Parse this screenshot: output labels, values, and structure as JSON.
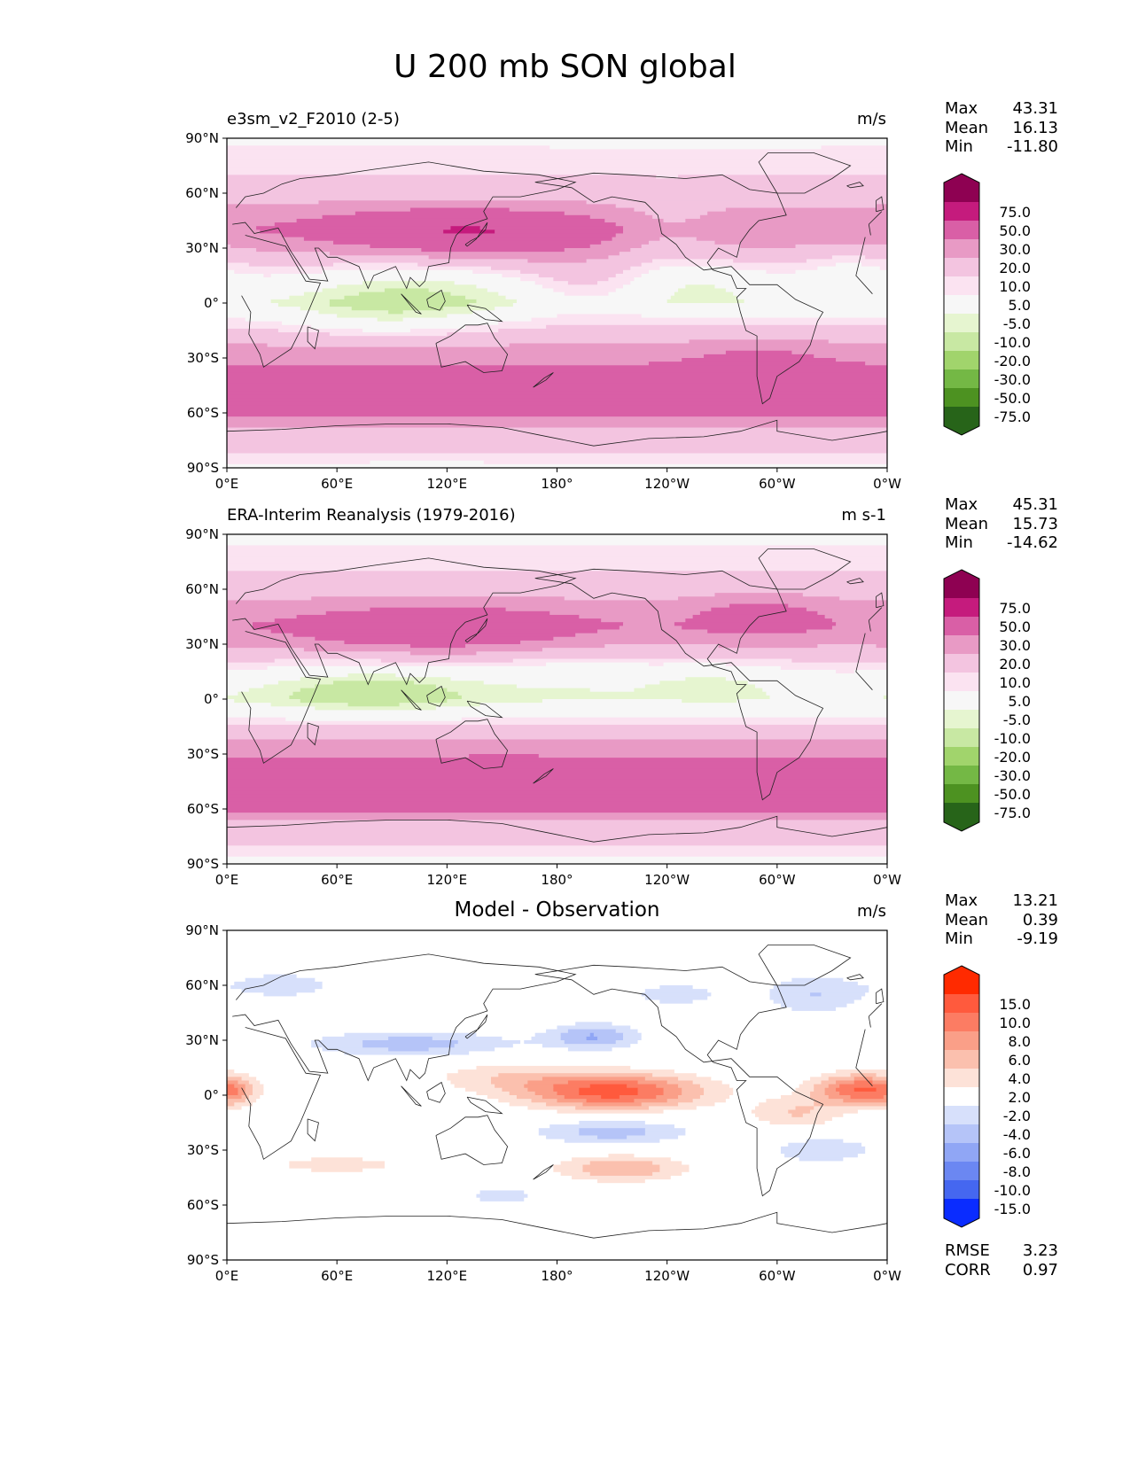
{
  "figure": {
    "title": "U 200 mb SON global"
  },
  "chart_data": [
    {
      "type": "heatmap",
      "title_left": "e3sm_v2_F2010 (2-5)",
      "title_center": "",
      "units": "m/s",
      "stats": [
        [
          "Max",
          "43.31"
        ],
        [
          "Mean",
          "16.13"
        ],
        [
          "Min",
          "-11.80"
        ]
      ],
      "extra_stats": [],
      "xlim": [
        0,
        360
      ],
      "ylim": [
        -90,
        90
      ],
      "x_ticks": [
        "0°E",
        "60°E",
        "120°E",
        "180°",
        "120°W",
        "60°W",
        "0°W"
      ],
      "y_ticks": [
        "90°N",
        "60°N",
        "30°N",
        "0°",
        "30°S",
        "60°S",
        "90°S"
      ],
      "colorbar": {
        "labels": [
          "75.0",
          "50.0",
          "30.0",
          "20.0",
          "10.0",
          "5.0",
          "-5.0",
          "-10.0",
          "-20.0",
          "-30.0",
          "-50.0",
          "-75.0"
        ],
        "colors": [
          "#8e0152",
          "#c51b7d",
          "#d95fa6",
          "#e89ac5",
          "#f3c4e0",
          "#fbe3f1",
          "#f7f7f7",
          "#e6f5d0",
          "#c8e8a3",
          "#a1d46c",
          "#74b845",
          "#4d9221",
          "#276419"
        ]
      },
      "field": {
        "zonal_profile": [
          [
            -90,
            2
          ],
          [
            -80,
            12
          ],
          [
            -70,
            15
          ],
          [
            -60,
            33
          ],
          [
            -50,
            40
          ],
          [
            -40,
            35
          ],
          [
            -30,
            27
          ],
          [
            -20,
            18
          ],
          [
            -10,
            8
          ],
          [
            0,
            -2
          ],
          [
            10,
            4
          ],
          [
            20,
            12
          ],
          [
            30,
            21
          ],
          [
            40,
            28
          ],
          [
            50,
            22
          ],
          [
            60,
            14
          ],
          [
            70,
            10
          ],
          [
            80,
            8
          ],
          [
            90,
            2
          ]
        ],
        "features": [
          [
            125,
            40,
            55,
            9,
            20
          ],
          [
            150,
            32,
            45,
            9,
            6
          ],
          [
            100,
            8,
            45,
            12,
            -12
          ],
          [
            250,
            12,
            35,
            10,
            -10
          ],
          [
            85,
            -10,
            40,
            8,
            -8
          ],
          [
            200,
            10,
            25,
            10,
            10
          ],
          [
            290,
            -35,
            25,
            10,
            10
          ],
          [
            240,
            40,
            20,
            12,
            -8
          ],
          [
            340,
            20,
            20,
            10,
            -8
          ]
        ]
      }
    },
    {
      "type": "heatmap",
      "title_left": "ERA-Interim Reanalysis (1979-2016)",
      "title_center": "",
      "units": "m s-1",
      "stats": [
        [
          "Max",
          "45.31"
        ],
        [
          "Mean",
          "15.73"
        ],
        [
          "Min",
          "-14.62"
        ]
      ],
      "extra_stats": [],
      "xlim": [
        0,
        360
      ],
      "ylim": [
        -90,
        90
      ],
      "x_ticks": [
        "0°E",
        "60°E",
        "120°E",
        "180°",
        "120°W",
        "60°W",
        "0°W"
      ],
      "y_ticks": [
        "90°N",
        "60°N",
        "30°N",
        "0°",
        "30°S",
        "60°S",
        "90°S"
      ],
      "colorbar": {
        "labels": [
          "75.0",
          "50.0",
          "30.0",
          "20.0",
          "10.0",
          "5.0",
          "-5.0",
          "-10.0",
          "-20.0",
          "-30.0",
          "-50.0",
          "-75.0"
        ],
        "colors": [
          "#8e0152",
          "#c51b7d",
          "#d95fa6",
          "#e89ac5",
          "#f3c4e0",
          "#fbe3f1",
          "#f7f7f7",
          "#e6f5d0",
          "#c8e8a3",
          "#a1d46c",
          "#74b845",
          "#4d9221",
          "#276419"
        ]
      },
      "field": {
        "zonal_profile": [
          [
            -90,
            2
          ],
          [
            -80,
            10
          ],
          [
            -70,
            14
          ],
          [
            -60,
            32
          ],
          [
            -50,
            40
          ],
          [
            -40,
            36
          ],
          [
            -30,
            28
          ],
          [
            -20,
            18
          ],
          [
            -10,
            6
          ],
          [
            0,
            -3
          ],
          [
            10,
            2
          ],
          [
            20,
            10
          ],
          [
            30,
            20
          ],
          [
            40,
            27
          ],
          [
            50,
            22
          ],
          [
            60,
            15
          ],
          [
            70,
            10
          ],
          [
            80,
            7
          ],
          [
            90,
            2
          ]
        ],
        "features": [
          [
            115,
            38,
            55,
            9,
            20
          ],
          [
            80,
            5,
            45,
            10,
            -14
          ],
          [
            265,
            10,
            30,
            8,
            -8
          ],
          [
            290,
            45,
            25,
            8,
            14
          ],
          [
            150,
            -45,
            50,
            8,
            6
          ],
          [
            190,
            15,
            30,
            10,
            -6
          ]
        ]
      }
    },
    {
      "type": "heatmap",
      "title_left": "",
      "title_center": "Model - Observation",
      "units": "m/s",
      "stats": [
        [
          "Max",
          "13.21"
        ],
        [
          "Mean",
          "0.39"
        ],
        [
          "Min",
          "-9.19"
        ]
      ],
      "extra_stats": [
        [
          "RMSE",
          "3.23"
        ],
        [
          "CORR",
          "0.97"
        ]
      ],
      "xlim": [
        0,
        360
      ],
      "ylim": [
        -90,
        90
      ],
      "x_ticks": [
        "0°E",
        "60°E",
        "120°E",
        "180°",
        "120°W",
        "60°W",
        "0°W"
      ],
      "y_ticks": [
        "90°N",
        "60°N",
        "30°N",
        "0°",
        "30°S",
        "60°S",
        "90°S"
      ],
      "colorbar": {
        "labels": [
          "15.0",
          "10.0",
          "8.0",
          "6.0",
          "4.0",
          "2.0",
          "-2.0",
          "-4.0",
          "-6.0",
          "-8.0",
          "-10.0",
          "-15.0"
        ],
        "colors": [
          "#ff2a00",
          "#ff5a3d",
          "#fc7c63",
          "#fa9f88",
          "#fbc0ae",
          "#fde2d8",
          "#ffffff",
          "#d7e0fb",
          "#b5c4f8",
          "#90a6f5",
          "#6b87f2",
          "#4567f0",
          "#0a2cff"
        ]
      },
      "field": {
        "zonal_profile": [
          [
            -90,
            0
          ],
          [
            90,
            0
          ]
        ],
        "features": [
          [
            210,
            2,
            35,
            7,
            11
          ],
          [
            345,
            3,
            18,
            6,
            10
          ],
          [
            100,
            28,
            40,
            5,
            -5
          ],
          [
            200,
            32,
            18,
            5,
            -6
          ],
          [
            210,
            -20,
            30,
            5,
            -5
          ],
          [
            215,
            -40,
            25,
            5,
            6
          ],
          [
            310,
            -10,
            18,
            6,
            4
          ],
          [
            325,
            -30,
            20,
            5,
            -4
          ],
          [
            150,
            10,
            30,
            6,
            3
          ],
          [
            30,
            60,
            25,
            6,
            -3
          ],
          [
            320,
            55,
            20,
            8,
            -4
          ],
          [
            150,
            -55,
            15,
            4,
            -3
          ],
          [
            60,
            -38,
            30,
            4,
            3
          ],
          [
            5,
            2,
            8,
            6,
            3
          ],
          [
            245,
            55,
            20,
            5,
            -3
          ]
        ]
      }
    }
  ]
}
